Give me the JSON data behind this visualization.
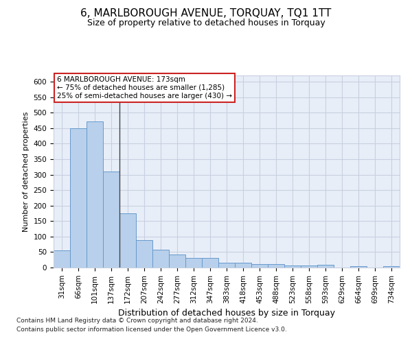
{
  "title": "6, MARLBOROUGH AVENUE, TORQUAY, TQ1 1TT",
  "subtitle": "Size of property relative to detached houses in Torquay",
  "xlabel": "Distribution of detached houses by size in Torquay",
  "ylabel": "Number of detached properties",
  "categories": [
    "31sqm",
    "66sqm",
    "101sqm",
    "137sqm",
    "172sqm",
    "207sqm",
    "242sqm",
    "277sqm",
    "312sqm",
    "347sqm",
    "383sqm",
    "418sqm",
    "453sqm",
    "488sqm",
    "523sqm",
    "558sqm",
    "593sqm",
    "629sqm",
    "664sqm",
    "699sqm",
    "734sqm"
  ],
  "values": [
    55,
    450,
    472,
    311,
    175,
    88,
    58,
    43,
    31,
    31,
    15,
    15,
    10,
    10,
    6,
    6,
    9,
    0,
    4,
    0,
    4
  ],
  "bar_color": "#b8d0eb",
  "bar_edge_color": "#6699cc",
  "vline_x": 3.5,
  "vline_color": "#444444",
  "background_color": "#e8eef8",
  "grid_color": "#c8cfe0",
  "annotation_text": "6 MARLBOROUGH AVENUE: 173sqm\n← 75% of detached houses are smaller (1,285)\n25% of semi-detached houses are larger (430) →",
  "annotation_box_facecolor": "#ffffff",
  "annotation_box_edgecolor": "#cc2222",
  "ylim": [
    0,
    620
  ],
  "yticks": [
    0,
    50,
    100,
    150,
    200,
    250,
    300,
    350,
    400,
    450,
    500,
    550,
    600
  ],
  "title_fontsize": 11,
  "subtitle_fontsize": 9,
  "ylabel_fontsize": 8,
  "xlabel_fontsize": 9,
  "tick_fontsize": 7.5,
  "footnote1": "Contains HM Land Registry data © Crown copyright and database right 2024.",
  "footnote2": "Contains public sector information licensed under the Open Government Licence v3.0.",
  "footnote_fontsize": 6.5
}
